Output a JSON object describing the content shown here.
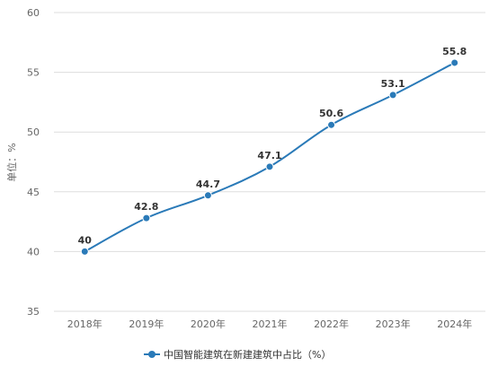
{
  "chart_data": {
    "type": "line",
    "categories": [
      "2018年",
      "2019年",
      "2020年",
      "2021年",
      "2022年",
      "2023年",
      "2024年"
    ],
    "series": [
      {
        "name": "中国智能建筑在新建建筑中占比（%）",
        "values": [
          40,
          42.8,
          44.7,
          47.1,
          50.6,
          53.1,
          55.8
        ],
        "labels": [
          "40",
          "42.8",
          "44.7",
          "47.1",
          "50.6",
          "53.1",
          "55.8"
        ],
        "color": "#2a7ab8"
      }
    ],
    "ylabel": "单位：%",
    "ylim": [
      35,
      60
    ],
    "yticks": [
      35,
      40,
      45,
      50,
      55,
      60
    ],
    "yticks_labels": [
      "35",
      "40",
      "45",
      "50",
      "55",
      "60"
    ],
    "grid": true,
    "legend_position": "bottom"
  }
}
